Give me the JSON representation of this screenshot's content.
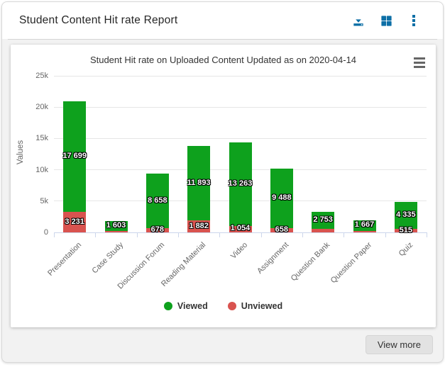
{
  "header": {
    "title": "Student Content Hit rate Report",
    "icon_color": "#0d6fa6"
  },
  "chart_menu_icon": "hamburger-menu",
  "chart_data": {
    "type": "bar",
    "stacked": true,
    "title": "Student Hit rate on Uploaded Content Updated as on 2020-04-14",
    "xlabel": "",
    "ylabel": "Values",
    "ylim": [
      0,
      25000
    ],
    "ytick_labels": [
      "0",
      "5k",
      "10k",
      "15k",
      "20k",
      "25k"
    ],
    "grid": true,
    "legend_position": "bottom",
    "categories": [
      "Presentation",
      "Case Study",
      "Discussion Forum",
      "Reading Material",
      "Video",
      "Assignment",
      "Question Bank",
      "Question Paper",
      "Quiz"
    ],
    "series": [
      {
        "name": "Viewed",
        "color": "#0ea11d",
        "values": [
          17699,
          1603,
          8658,
          11893,
          13263,
          9488,
          2753,
          1667,
          4335
        ],
        "labels": [
          "17 699",
          "1 603",
          "8 658",
          "11 893",
          "13 263",
          "9 488",
          "2 753",
          "1 667",
          "4 335"
        ]
      },
      {
        "name": "Unviewed",
        "color": "#d9534f",
        "values": [
          3231,
          180,
          678,
          1882,
          1054,
          658,
          560,
          280,
          515
        ],
        "labels": [
          "3 231",
          "",
          "678",
          "1 882",
          "1 054",
          "658",
          "",
          "",
          "515"
        ]
      }
    ]
  },
  "footer": {
    "view_more_label": "View more"
  },
  "colors": {
    "accent_blue": "#0d6fa6",
    "viewed_green": "#0ea11d",
    "unviewed_red": "#d9534f",
    "panel_bg": "#ffffff",
    "body_bg": "#f2f2f2",
    "gridline": "#e6e6e6",
    "axis": "#ccd6eb"
  }
}
